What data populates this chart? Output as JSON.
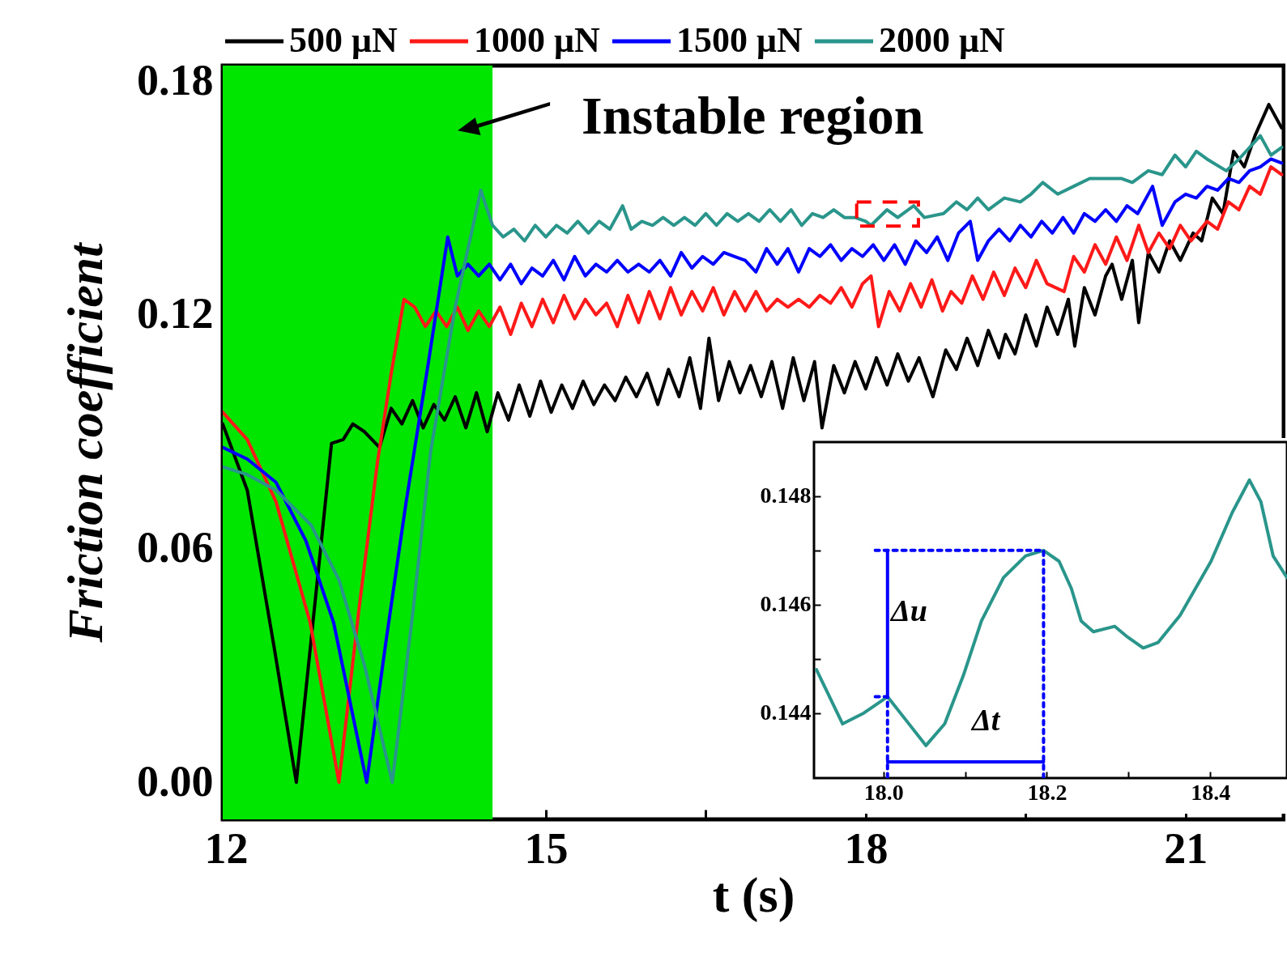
{
  "chart_data": [
    {
      "type": "line",
      "xlabel": "t (s)",
      "ylabel": "Friction coefficient",
      "legend": "top",
      "grid": false,
      "xlim": [
        11.97,
        21.92
      ],
      "ylim": [
        -0.0095,
        0.184
      ],
      "xticks": [
        12,
        {
          "value": 13.5,
          "label": null
        },
        15,
        {
          "value": 16.5,
          "label": null
        },
        18,
        {
          "value": 19.5,
          "label": null
        },
        21
      ],
      "yticks": [
        {
          "value": 0,
          "label": "0.00"
        },
        {
          "value": 0.03,
          "label": null
        },
        0.06,
        {
          "value": 0.09,
          "label": null
        },
        0.12,
        {
          "value": 0.15,
          "label": null
        },
        0.18
      ],
      "bands": [
        {
          "axis": "x",
          "from": 11.97,
          "to": 14.5,
          "label": "Instable region",
          "color": "#00e600"
        }
      ],
      "series": [
        {
          "name": "500 μN",
          "color": "#000000",
          "x": [
            11.97,
            12.2,
            12.45,
            12.66,
            12.85,
            12.99,
            13.1,
            13.19,
            13.3,
            13.44,
            13.55,
            13.65,
            13.75,
            13.85,
            13.95,
            14.05,
            14.15,
            14.25,
            14.35,
            14.45,
            14.55,
            14.65,
            14.75,
            14.85,
            14.95,
            15.05,
            15.15,
            15.25,
            15.35,
            15.45,
            15.55,
            15.65,
            15.75,
            15.85,
            15.95,
            16.05,
            16.15,
            16.25,
            16.35,
            16.45,
            16.53,
            16.62,
            16.72,
            16.82,
            16.92,
            17.02,
            17.12,
            17.22,
            17.32,
            17.42,
            17.52,
            17.59,
            17.7,
            17.8,
            17.9,
            18.0,
            18.1,
            18.2,
            18.3,
            18.4,
            18.5,
            18.63,
            18.75,
            18.85,
            18.95,
            19.05,
            19.15,
            19.25,
            19.31,
            19.4,
            19.5,
            19.6,
            19.7,
            19.8,
            19.9,
            19.96,
            20.05,
            20.15,
            20.25,
            20.31,
            20.4,
            20.5,
            20.56,
            20.65,
            20.75,
            20.85,
            20.95,
            21.07,
            21.15,
            21.25,
            21.35,
            21.45,
            21.55,
            21.65,
            21.78,
            21.9
          ],
          "values": [
            0.092,
            0.075,
            0.035,
            0,
            0.05,
            0.087,
            0.088,
            0.092,
            0.09,
            0.086,
            0.096,
            0.092,
            0.098,
            0.091,
            0.097,
            0.093,
            0.099,
            0.091,
            0.1,
            0.09,
            0.1,
            0.093,
            0.102,
            0.094,
            0.103,
            0.095,
            0.102,
            0.096,
            0.103,
            0.097,
            0.102,
            0.098,
            0.104,
            0.099,
            0.105,
            0.097,
            0.106,
            0.099,
            0.109,
            0.096,
            0.114,
            0.098,
            0.108,
            0.1,
            0.107,
            0.099,
            0.108,
            0.096,
            0.109,
            0.098,
            0.108,
            0.091,
            0.107,
            0.1,
            0.108,
            0.101,
            0.109,
            0.102,
            0.11,
            0.103,
            0.109,
            0.099,
            0.111,
            0.106,
            0.114,
            0.107,
            0.116,
            0.109,
            0.115,
            0.11,
            0.12,
            0.112,
            0.122,
            0.115,
            0.124,
            0.112,
            0.127,
            0.12,
            0.13,
            0.133,
            0.124,
            0.134,
            0.118,
            0.136,
            0.131,
            0.139,
            0.134,
            0.141,
            0.139,
            0.15,
            0.146,
            0.162,
            0.158,
            0.166,
            0.174,
            0.168
          ]
        },
        {
          "name": "1000 μN",
          "color": "#ff1a1a",
          "x": [
            11.97,
            12.2,
            12.47,
            12.79,
            13.06,
            13.25,
            13.42,
            13.55,
            13.67,
            13.77,
            13.87,
            13.97,
            14.07,
            14.17,
            14.27,
            14.37,
            14.47,
            14.57,
            14.67,
            14.77,
            14.87,
            14.97,
            15.07,
            15.17,
            15.27,
            15.37,
            15.47,
            15.57,
            15.67,
            15.77,
            15.87,
            15.97,
            16.07,
            16.17,
            16.27,
            16.37,
            16.47,
            16.57,
            16.67,
            16.77,
            16.87,
            16.97,
            17.07,
            17.17,
            17.27,
            17.37,
            17.47,
            17.57,
            17.67,
            17.77,
            17.87,
            17.97,
            18.05,
            18.12,
            18.22,
            18.32,
            18.42,
            18.52,
            18.62,
            18.72,
            18.8,
            18.9,
            19.0,
            19.1,
            19.2,
            19.3,
            19.4,
            19.5,
            19.6,
            19.7,
            19.86,
            19.95,
            20.05,
            20.15,
            20.25,
            20.35,
            20.45,
            20.56,
            20.65,
            20.75,
            20.85,
            20.95,
            21.05,
            21.2,
            21.3,
            21.4,
            21.5,
            21.6,
            21.7,
            21.8,
            21.9
          ],
          "values": [
            0.095,
            0.088,
            0.072,
            0.041,
            0,
            0.045,
            0.082,
            0.105,
            0.124,
            0.122,
            0.117,
            0.121,
            0.117,
            0.122,
            0.116,
            0.121,
            0.117,
            0.122,
            0.115,
            0.123,
            0.117,
            0.124,
            0.118,
            0.125,
            0.119,
            0.124,
            0.12,
            0.123,
            0.117,
            0.125,
            0.118,
            0.126,
            0.119,
            0.127,
            0.12,
            0.126,
            0.121,
            0.127,
            0.12,
            0.126,
            0.121,
            0.126,
            0.121,
            0.124,
            0.122,
            0.124,
            0.122,
            0.125,
            0.123,
            0.127,
            0.122,
            0.128,
            0.13,
            0.117,
            0.126,
            0.121,
            0.128,
            0.122,
            0.129,
            0.121,
            0.126,
            0.123,
            0.13,
            0.124,
            0.131,
            0.125,
            0.132,
            0.127,
            0.134,
            0.128,
            0.126,
            0.135,
            0.131,
            0.138,
            0.133,
            0.14,
            0.134,
            0.143,
            0.136,
            0.141,
            0.137,
            0.143,
            0.139,
            0.144,
            0.142,
            0.149,
            0.147,
            0.153,
            0.151,
            0.158,
            0.156
          ]
        },
        {
          "name": "1500 μN",
          "color": "#0000ff",
          "x": [
            11.97,
            12.2,
            12.47,
            12.75,
            13.01,
            13.32,
            13.5,
            13.69,
            13.9,
            14.08,
            14.17,
            14.27,
            14.37,
            14.47,
            14.57,
            14.67,
            14.77,
            14.87,
            14.97,
            15.07,
            15.17,
            15.27,
            15.37,
            15.47,
            15.57,
            15.67,
            15.77,
            15.87,
            15.97,
            16.07,
            16.17,
            16.27,
            16.37,
            16.47,
            16.57,
            16.67,
            16.77,
            16.87,
            16.97,
            17.07,
            17.17,
            17.27,
            17.37,
            17.47,
            17.57,
            17.67,
            17.77,
            17.87,
            17.97,
            18.07,
            18.17,
            18.27,
            18.37,
            18.47,
            18.57,
            18.67,
            18.77,
            18.87,
            18.98,
            19.05,
            19.15,
            19.25,
            19.35,
            19.45,
            19.55,
            19.65,
            19.75,
            19.85,
            19.95,
            20.05,
            20.15,
            20.25,
            20.35,
            20.45,
            20.55,
            20.69,
            20.78,
            20.9,
            21.0,
            21.1,
            21.2,
            21.3,
            21.4,
            21.5,
            21.6,
            21.7,
            21.8,
            21.9
          ],
          "values": [
            0.086,
            0.083,
            0.077,
            0.062,
            0.041,
            0,
            0.036,
            0.072,
            0.108,
            0.14,
            0.13,
            0.133,
            0.13,
            0.133,
            0.129,
            0.133,
            0.128,
            0.132,
            0.13,
            0.134,
            0.129,
            0.135,
            0.13,
            0.133,
            0.131,
            0.134,
            0.131,
            0.133,
            0.131,
            0.134,
            0.13,
            0.136,
            0.132,
            0.135,
            0.133,
            0.136,
            0.135,
            0.134,
            0.131,
            0.137,
            0.133,
            0.137,
            0.131,
            0.137,
            0.135,
            0.138,
            0.134,
            0.137,
            0.135,
            0.138,
            0.134,
            0.138,
            0.133,
            0.139,
            0.136,
            0.14,
            0.134,
            0.141,
            0.144,
            0.134,
            0.139,
            0.142,
            0.139,
            0.143,
            0.14,
            0.144,
            0.141,
            0.145,
            0.141,
            0.146,
            0.144,
            0.147,
            0.144,
            0.148,
            0.146,
            0.153,
            0.143,
            0.149,
            0.151,
            0.15,
            0.153,
            0.152,
            0.155,
            0.154,
            0.157,
            0.158,
            0.16,
            0.159
          ]
        },
        {
          "name": "2000 μN",
          "color": "#2a958b",
          "x": [
            11.97,
            12.2,
            12.47,
            12.8,
            13.06,
            13.3,
            13.56,
            13.75,
            13.92,
            14.15,
            14.39,
            14.5,
            14.6,
            14.7,
            14.8,
            14.9,
            15.0,
            15.1,
            15.2,
            15.3,
            15.4,
            15.5,
            15.6,
            15.72,
            15.8,
            15.9,
            16.0,
            16.1,
            16.2,
            16.3,
            16.4,
            16.5,
            16.6,
            16.7,
            16.8,
            16.9,
            17.0,
            17.1,
            17.2,
            17.3,
            17.4,
            17.5,
            17.6,
            17.7,
            17.8,
            17.9,
            18.0,
            18.05,
            18.2,
            18.3,
            18.45,
            18.55,
            18.73,
            18.85,
            18.95,
            19.05,
            19.15,
            19.3,
            19.45,
            19.55,
            19.66,
            19.8,
            19.95,
            20.1,
            20.25,
            20.4,
            20.5,
            20.65,
            20.78,
            20.9,
            21.0,
            21.1,
            21.2,
            21.38,
            21.5,
            21.7,
            21.8,
            21.9
          ],
          "values": [
            0.081,
            0.079,
            0.075,
            0.066,
            0.052,
            0.03,
            0,
            0.043,
            0.085,
            0.122,
            0.152,
            0.143,
            0.14,
            0.142,
            0.139,
            0.143,
            0.14,
            0.143,
            0.141,
            0.144,
            0.141,
            0.144,
            0.142,
            0.148,
            0.142,
            0.144,
            0.143,
            0.145,
            0.143,
            0.145,
            0.143,
            0.146,
            0.143,
            0.146,
            0.144,
            0.146,
            0.144,
            0.147,
            0.144,
            0.147,
            0.143,
            0.146,
            0.145,
            0.147,
            0.145,
            0.145,
            0.144,
            0.143,
            0.147,
            0.145,
            0.148,
            0.145,
            0.146,
            0.149,
            0.147,
            0.15,
            0.147,
            0.15,
            0.149,
            0.151,
            0.154,
            0.151,
            0.153,
            0.155,
            0.155,
            0.155,
            0.154,
            0.157,
            0.156,
            0.161,
            0.158,
            0.162,
            0.16,
            0.157,
            0.16,
            0.166,
            0.161,
            0.163
          ]
        }
      ]
    },
    {
      "type": "line",
      "legend": false,
      "grid": false,
      "xlim": [
        17.915,
        18.494
      ],
      "ylim": [
        0.1428,
        0.149
      ],
      "xticks": [
        {
          "value": 18,
          "label": "18.0"
        },
        {
          "value": 18.1,
          "label": null
        },
        18.2,
        {
          "value": 18.3,
          "label": null
        },
        18.4
      ],
      "yticks": [
        0.144,
        {
          "value": 0.145,
          "label": null
        },
        0.146,
        {
          "value": 0.147,
          "label": null
        },
        0.148
      ],
      "annotations": [
        "Δu",
        "Δt"
      ],
      "series": [
        {
          "color": "#2a958b",
          "x": [
            17.918,
            17.95,
            17.976,
            18.005,
            18.026,
            18.052,
            18.075,
            18.098,
            18.12,
            18.147,
            18.174,
            18.196,
            18.215,
            18.23,
            18.242,
            18.257,
            18.283,
            18.299,
            18.318,
            18.336,
            18.363,
            18.401,
            18.427,
            18.448,
            18.462,
            18.477,
            18.494
          ],
          "values": [
            0.1448,
            0.1438,
            0.144,
            0.1443,
            0.1439,
            0.1434,
            0.1438,
            0.1447,
            0.1457,
            0.1465,
            0.1469,
            0.147,
            0.1468,
            0.1463,
            0.1457,
            0.1455,
            0.1456,
            0.1454,
            0.1452,
            0.1453,
            0.1458,
            0.1468,
            0.1477,
            0.1483,
            0.1479,
            0.1469,
            0.1465
          ]
        },
        {
          "type": "line",
          "color": "#0000ff",
          "line_style": "dotted",
          "x": [
            17.99,
            18.196,
            18.196
          ],
          "values": [
            0.147,
            0.147,
            0.1428
          ]
        },
        {
          "type": "line",
          "color": "#0000ff",
          "line_style": "dotted",
          "x": [
            17.99,
            18.005,
            18.005
          ],
          "values": [
            0.1443,
            0.1443,
            0.1428
          ]
        },
        {
          "type": "line",
          "color": "#0000ff",
          "x": [
            18.005,
            18.005
          ],
          "values": [
            0.1443,
            0.147
          ]
        },
        {
          "type": "line",
          "color": "#0000ff",
          "x": [
            18.005,
            18.196
          ],
          "values": [
            0.1431,
            0.1431
          ]
        }
      ]
    }
  ]
}
